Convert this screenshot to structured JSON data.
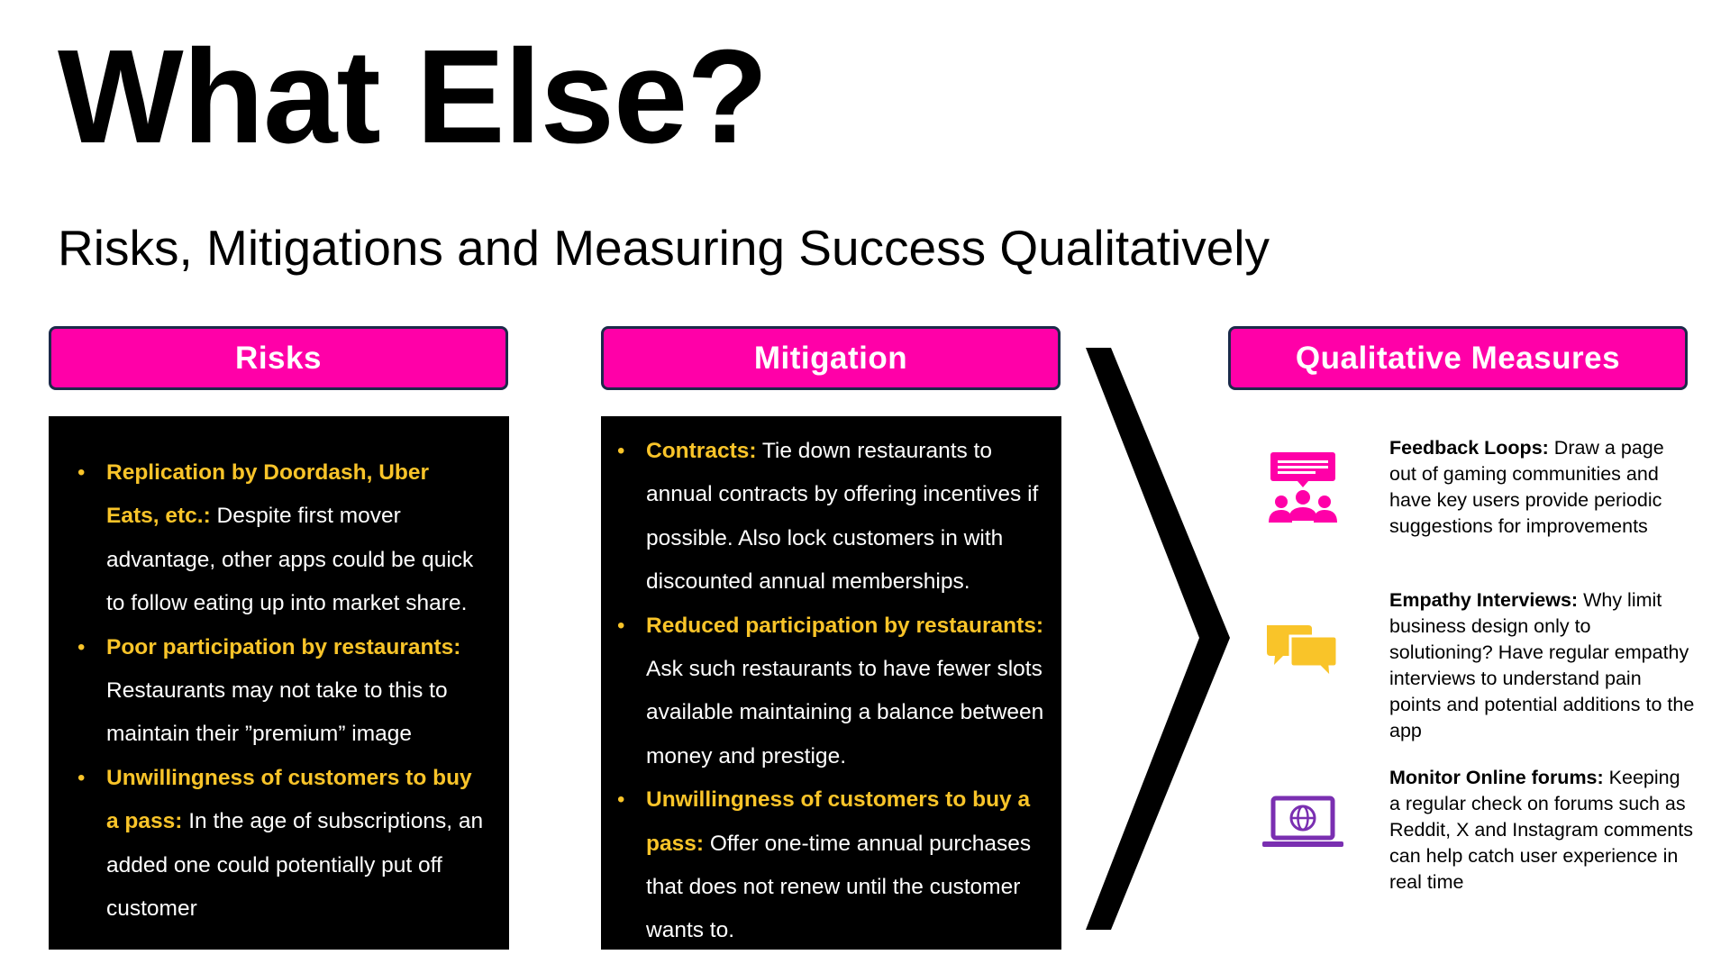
{
  "title": "What Else?",
  "subtitle": "Risks, Mitigations and Measuring Success Qualitatively",
  "colors": {
    "accent": "#ff00a8",
    "highlight": "#f9c429",
    "panel": "#000000",
    "chat_icon": "#f9c429",
    "laptop_icon": "#7a2fb1"
  },
  "columns": {
    "risks": {
      "header": "Risks",
      "items": [
        {
          "keyword": "Replication by Doordash, Uber Eats, etc.:",
          "text": " Despite first mover advantage, other apps could be quick to follow eating up into market share."
        },
        {
          "keyword": "Poor participation by restaurants:",
          "text": " Restaurants may not take to this to maintain their ”premium” image"
        },
        {
          "keyword": "Unwillingness of customers to buy a pass:",
          "text": " In the age of subscriptions, an added one could potentially put off customer"
        }
      ]
    },
    "mitigation": {
      "header": "Mitigation",
      "items": [
        {
          "keyword": "Contracts:",
          "text": "  Tie down restaurants to annual contracts by offering incentives if possible. Also lock customers in with discounted annual memberships."
        },
        {
          "keyword": "Reduced participation by restaurants:",
          "text": " Ask such restaurants to have fewer slots available maintaining a balance between money and prestige."
        },
        {
          "keyword": "Unwillingness of customers to buy a pass:",
          "text": " Offer one-time annual purchases that does not renew until the customer wants to."
        }
      ]
    },
    "measures": {
      "header": "Qualitative Measures",
      "items": [
        {
          "icon": "feedback-group-icon",
          "keyword": "Feedback Loops:",
          "text": " Draw a page out of gaming communities and have key users provide periodic suggestions for improvements"
        },
        {
          "icon": "chat-bubbles-icon",
          "keyword": "Empathy Interviews:",
          "text": " Why limit business design only to solutioning? Have regular empathy interviews to understand pain points and potential additions to the app"
        },
        {
          "icon": "laptop-globe-icon",
          "keyword": "Monitor Online forums:",
          "text": " Keeping a regular check on forums such as Reddit, X and Instagram comments can help catch user experience in real time"
        }
      ]
    }
  }
}
